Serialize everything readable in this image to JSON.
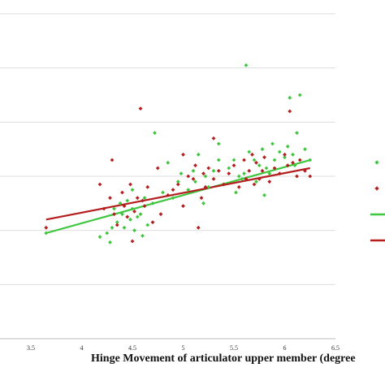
{
  "chart_data": {
    "type": "scatter",
    "xlabel": "Hinge Movement of articulator upper member (degree",
    "xlim": [
      3.5,
      6.5
    ],
    "x_ticks": [
      "3.5",
      "4",
      "4.5",
      "5",
      "5.5",
      "6",
      "6.5"
    ],
    "ylim": [
      0,
      6
    ],
    "gridlines": [
      1,
      2,
      3,
      4,
      5,
      6
    ],
    "grid": true,
    "legend": "right",
    "colors": {
      "green": "#3ec63e",
      "red": "#b41e1e"
    },
    "series": [
      {
        "color": "#3ec63e",
        "marker": "diamond",
        "points": [
          [
            3.65,
            1.95
          ],
          [
            4.18,
            1.88
          ],
          [
            4.25,
            1.95
          ],
          [
            4.28,
            1.78
          ],
          [
            4.3,
            2.05
          ],
          [
            4.32,
            2.4
          ],
          [
            4.35,
            2.15
          ],
          [
            4.38,
            2.5
          ],
          [
            4.4,
            2.3
          ],
          [
            4.42,
            2.05
          ],
          [
            4.45,
            2.55
          ],
          [
            4.48,
            2.2
          ],
          [
            4.5,
            2.4
          ],
          [
            4.52,
            2.0
          ],
          [
            4.55,
            2.25
          ],
          [
            4.58,
            2.3
          ],
          [
            4.6,
            1.9
          ],
          [
            4.62,
            2.6
          ],
          [
            4.65,
            2.1
          ],
          [
            4.7,
            2.5
          ],
          [
            4.72,
            3.8
          ],
          [
            4.8,
            2.7
          ],
          [
            4.85,
            3.25
          ],
          [
            4.9,
            2.6
          ],
          [
            4.95,
            2.9
          ],
          [
            5.05,
            2.75
          ],
          [
            5.1,
            3.1
          ],
          [
            5.12,
            2.9
          ],
          [
            5.15,
            3.4
          ],
          [
            5.2,
            2.5
          ],
          [
            5.22,
            3.0
          ],
          [
            5.25,
            2.8
          ],
          [
            5.3,
            3.1
          ],
          [
            5.35,
            3.3
          ],
          [
            5.4,
            2.85
          ],
          [
            5.45,
            3.15
          ],
          [
            5.5,
            3.3
          ],
          [
            5.52,
            2.7
          ],
          [
            5.55,
            3.0
          ],
          [
            5.6,
            3.05
          ],
          [
            5.62,
            5.05
          ],
          [
            5.65,
            3.45
          ],
          [
            5.7,
            3.3
          ],
          [
            5.72,
            2.9
          ],
          [
            5.75,
            3.2
          ],
          [
            5.78,
            3.5
          ],
          [
            5.8,
            2.65
          ],
          [
            5.82,
            3.15
          ],
          [
            5.85,
            3.05
          ],
          [
            5.9,
            3.3
          ],
          [
            5.95,
            3.45
          ],
          [
            6.0,
            3.35
          ],
          [
            6.03,
            3.55
          ],
          [
            6.05,
            4.45
          ],
          [
            6.08,
            3.4
          ],
          [
            6.1,
            3.2
          ],
          [
            6.12,
            3.8
          ],
          [
            6.15,
            4.5
          ],
          [
            6.2,
            3.5
          ],
          [
            6.25,
            3.3
          ],
          [
            5.35,
            3.6
          ],
          [
            4.98,
            3.05
          ],
          [
            5.58,
            2.95
          ],
          [
            4.5,
            2.75
          ],
          [
            5.88,
            3.6
          ]
        ]
      },
      {
        "color": "#b41e1e",
        "marker": "diamond",
        "points": [
          [
            3.65,
            2.05
          ],
          [
            4.18,
            2.85
          ],
          [
            4.22,
            2.4
          ],
          [
            4.28,
            2.6
          ],
          [
            4.32,
            2.3
          ],
          [
            4.35,
            2.1
          ],
          [
            4.4,
            2.7
          ],
          [
            4.42,
            2.45
          ],
          [
            4.45,
            2.25
          ],
          [
            4.48,
            2.85
          ],
          [
            4.5,
            1.8
          ],
          [
            4.52,
            2.35
          ],
          [
            4.55,
            2.6
          ],
          [
            4.58,
            4.25
          ],
          [
            4.6,
            2.55
          ],
          [
            4.62,
            2.45
          ],
          [
            4.65,
            2.8
          ],
          [
            4.7,
            2.15
          ],
          [
            4.75,
            3.15
          ],
          [
            4.78,
            2.3
          ],
          [
            4.85,
            2.65
          ],
          [
            4.9,
            2.75
          ],
          [
            4.95,
            2.85
          ],
          [
            5.0,
            2.45
          ],
          [
            5.05,
            3.0
          ],
          [
            5.1,
            2.95
          ],
          [
            5.12,
            3.2
          ],
          [
            5.15,
            2.05
          ],
          [
            5.18,
            2.6
          ],
          [
            5.2,
            3.05
          ],
          [
            5.22,
            2.8
          ],
          [
            5.25,
            3.15
          ],
          [
            5.3,
            2.95
          ],
          [
            5.35,
            3.1
          ],
          [
            5.4,
            2.85
          ],
          [
            5.45,
            3.05
          ],
          [
            5.5,
            3.2
          ],
          [
            5.55,
            2.8
          ],
          [
            5.6,
            3.3
          ],
          [
            5.62,
            2.95
          ],
          [
            5.65,
            3.1
          ],
          [
            5.7,
            2.85
          ],
          [
            5.72,
            3.25
          ],
          [
            5.75,
            2.95
          ],
          [
            5.78,
            3.1
          ],
          [
            5.8,
            3.35
          ],
          [
            5.85,
            2.9
          ],
          [
            5.9,
            3.15
          ],
          [
            5.95,
            3.05
          ],
          [
            6.0,
            3.4
          ],
          [
            6.03,
            3.2
          ],
          [
            6.05,
            4.2
          ],
          [
            6.08,
            3.25
          ],
          [
            6.12,
            3.0
          ],
          [
            6.15,
            3.3
          ],
          [
            6.2,
            3.1
          ],
          [
            6.25,
            3.0
          ],
          [
            5.0,
            3.4
          ],
          [
            4.3,
            3.3
          ],
          [
            5.3,
            3.7
          ],
          [
            5.68,
            3.4
          ]
        ]
      }
    ],
    "fit_lines": [
      {
        "color": "#3ec63e",
        "x": [
          3.65,
          6.25
        ],
        "y": [
          1.95,
          3.3
        ]
      },
      {
        "color": "#b41e1e",
        "x": [
          3.65,
          6.25
        ],
        "y": [
          2.2,
          3.15
        ]
      }
    ],
    "legend_entries": [
      {
        "kind": "marker",
        "color": "#3ec63e"
      },
      {
        "kind": "marker",
        "color": "#b41e1e"
      },
      {
        "kind": "line",
        "color": "#3ec63e"
      },
      {
        "kind": "line",
        "color": "#b41e1e"
      }
    ]
  }
}
